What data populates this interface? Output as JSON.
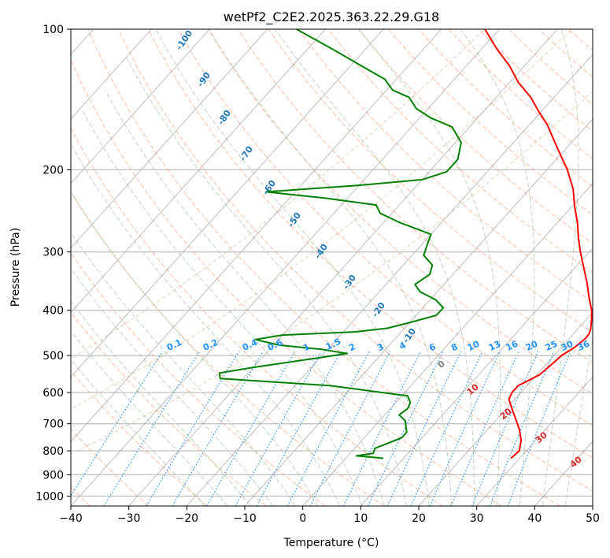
{
  "chart_data": {
    "type": "line",
    "title": "wetPf2_C2E2.2025.363.22.29.G18",
    "xlabel": "Temperature (°C)",
    "ylabel": "Pressure (hPa)",
    "xlim": [
      -40,
      50
    ],
    "ylim": [
      1050,
      100
    ],
    "y_scale": "log",
    "x_ticks": [
      -40,
      -30,
      -20,
      -10,
      0,
      10,
      20,
      30,
      40,
      50
    ],
    "x_tick_labels": [
      "−40",
      "−30",
      "−20",
      "−10",
      "0",
      "10",
      "20",
      "30",
      "40",
      "50"
    ],
    "y_ticks": [
      1000,
      900,
      800,
      700,
      600,
      500,
      400,
      300,
      200,
      100
    ],
    "y_tick_labels": [
      "1000",
      "900",
      "800",
      "700",
      "600",
      "500",
      "400",
      "300",
      "200",
      "100"
    ],
    "grid": true,
    "colors": {
      "temperature": "#ff0000",
      "dewpoint": "#008000",
      "isotherm": "#999999",
      "dry_adiabat": "#ffa07a",
      "moist_adiabat": "#8fbc8f",
      "mixing_ratio": "#1e90ff",
      "theta_e": "#d2b48c",
      "isotherm_label": "#1f77b4",
      "moist_label": "#d62728",
      "zero_label": "#808080"
    },
    "series": [
      {
        "key": "temperature",
        "pressure": [
          830,
          800,
          760,
          720,
          680,
          650,
          620,
          600,
          580,
          550,
          520,
          500,
          480,
          460,
          450,
          440,
          420,
          400,
          380,
          350,
          320,
          300,
          280,
          260,
          240,
          220,
          200,
          180,
          160,
          150,
          140,
          130,
          120,
          110,
          100
        ],
        "values": [
          28.5,
          28.8,
          27.5,
          25.5,
          23.0,
          21.0,
          19.0,
          18.5,
          18.5,
          20.5,
          21.0,
          21.3,
          22.3,
          22.8,
          22.7,
          22.3,
          21.0,
          19.5,
          17.5,
          14.5,
          11.0,
          8.5,
          6.0,
          3.5,
          0.5,
          -2.5,
          -6.5,
          -11.5,
          -17.0,
          -20.5,
          -24.0,
          -28.5,
          -32.5,
          -37.5,
          -42.5
        ]
      },
      {
        "key": "dewpoint",
        "pressure": [
          830,
          825,
          820,
          810,
          790,
          770,
          750,
          730,
          710,
          690,
          670,
          650,
          630,
          610,
          580,
          560,
          545,
          530,
          505,
          495,
          485,
          475,
          462,
          452,
          445,
          437,
          425,
          410,
          395,
          380,
          365,
          352,
          335,
          320,
          305,
          290,
          275,
          260,
          248,
          238,
          230,
          223,
          216,
          210,
          202,
          190,
          175,
          162,
          155,
          148,
          140,
          135,
          128,
          120,
          110,
          100
        ],
        "values": [
          6.5,
          4.0,
          1.5,
          4.0,
          3.5,
          5.0,
          6.5,
          6.5,
          5.5,
          4.5,
          2.5,
          3.0,
          2.5,
          1.0,
          -14.0,
          -34.0,
          -35.0,
          -30.0,
          -20.0,
          -16.0,
          -21.0,
          -29.0,
          -34.0,
          -30.0,
          -18.0,
          -13.0,
          -10.0,
          -6.5,
          -6.5,
          -9.0,
          -13.0,
          -15.0,
          -14.0,
          -15.0,
          -18.0,
          -19.0,
          -20.0,
          -27.0,
          -32.0,
          -34.0,
          -44.0,
          -55.0,
          -40.0,
          -30.0,
          -27.0,
          -27.0,
          -29.0,
          -33.0,
          -38.0,
          -42.0,
          -45.0,
          -49.0,
          -52.0,
          -58.0,
          -66.0,
          -75.0
        ]
      }
    ],
    "isotherm_labels": [
      "-100",
      "-90",
      "-80",
      "-70",
      "-60",
      "-50",
      "-40",
      "-30",
      "-20",
      "-10"
    ],
    "mixing_ratio_labels": [
      "0.1",
      "0.2",
      "0.4",
      "0.6",
      "1",
      "1.5",
      "2",
      "3",
      "4",
      "6",
      "8",
      "10",
      "13",
      "16",
      "20",
      "25",
      "30",
      "36"
    ],
    "moist_adiabat_labels": [
      "0",
      "10",
      "20",
      "30",
      "40"
    ]
  }
}
